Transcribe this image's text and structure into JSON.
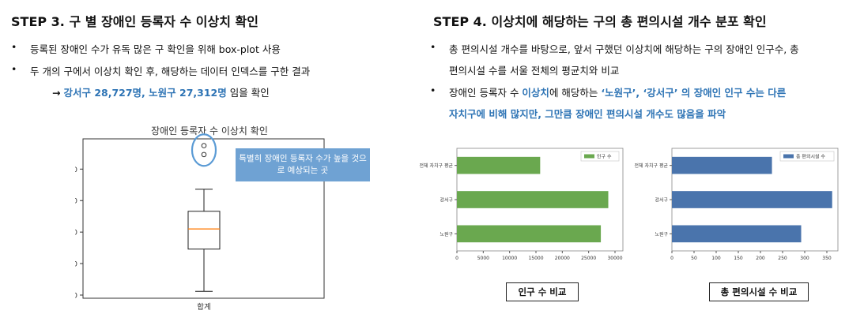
{
  "left": {
    "title": "STEP 3. 구 별 장애인 등록자  수 이상치 확인",
    "bullets": [
      "등록된 장애인 수가 유독 많은 구 확인을 위해 box-plot 사용",
      "두 개의 구에서 이상치 확인 후, 해당하는 데이터 인덱스를 구한 결과"
    ],
    "result_arrow": "→",
    "result_highlight": "강서구 28,727명, 노원구 27,312명",
    "result_suffix": " 임을 확인",
    "callout": "특별히 장애인 등록자 수가 높을 것으로 예상되는 곳"
  },
  "right": {
    "title": "STEP 4. 이상치에 해당하는 구의 총 편의시설 개수 분포 확인",
    "bullet1_line1": "총 편의시설 개수를 바탕으로, 앞서 구했던 이상치에 해당하는 구의 장애인 인구수, 총",
    "bullet1_line2": "편의시설 수를 서울 전체의 평균치와 비교",
    "bullet2_prefix": "장애인 등록자 수 ",
    "bullet2_blue1": "이상치",
    "bullet2_mid": "에 해당하는 ",
    "bullet2_blue2": "‘노원구’, ‘강서구’ 의 장애인 인구 수는 다른",
    "bullet2_line2": "자치구에 비해 많지만, 그만큼 장애인 편의시설 개수도 많음을 파악",
    "caption1": "인구 수 비교",
    "caption2": "총 편의시설 수 비교"
  },
  "chart_data": [
    {
      "type": "box",
      "title": "장애인 등록자 수 이상치 확인",
      "categories": [
        "합계"
      ],
      "box": {
        "whisker_low": 5600,
        "q1": 12300,
        "median": 15500,
        "q3": 18300,
        "whisker_high": 21800
      },
      "outliers": [
        27312,
        28727
      ],
      "yticks": [
        5000,
        10000,
        15000,
        20000,
        25000
      ],
      "ylim": [
        4500,
        29800
      ],
      "colors": {
        "box": "#1f1f1f",
        "median": "#ff7f0e",
        "highlight": "#5B9BD5"
      }
    },
    {
      "type": "bar",
      "orientation": "horizontal",
      "categories": [
        "전체 자치구 평균",
        "강서구",
        "노원구"
      ],
      "series": [
        {
          "name": "인구 수",
          "values": [
            15800,
            28727,
            27312
          ]
        }
      ],
      "xticks": [
        0,
        5000,
        10000,
        15000,
        20000,
        25000,
        30000
      ],
      "xlim": [
        0,
        31500
      ],
      "legend": "top-right",
      "color": "#6AA84F"
    },
    {
      "type": "bar",
      "orientation": "horizontal",
      "categories": [
        "전체 자치구 평균",
        "강서구",
        "노원구"
      ],
      "series": [
        {
          "name": "총 편의시설 수",
          "values": [
            226,
            362,
            292
          ]
        }
      ],
      "xticks": [
        0,
        50,
        100,
        150,
        200,
        250,
        300,
        350
      ],
      "xlim": [
        0,
        375
      ],
      "legend": "top-right",
      "color": "#4A74AC"
    }
  ]
}
